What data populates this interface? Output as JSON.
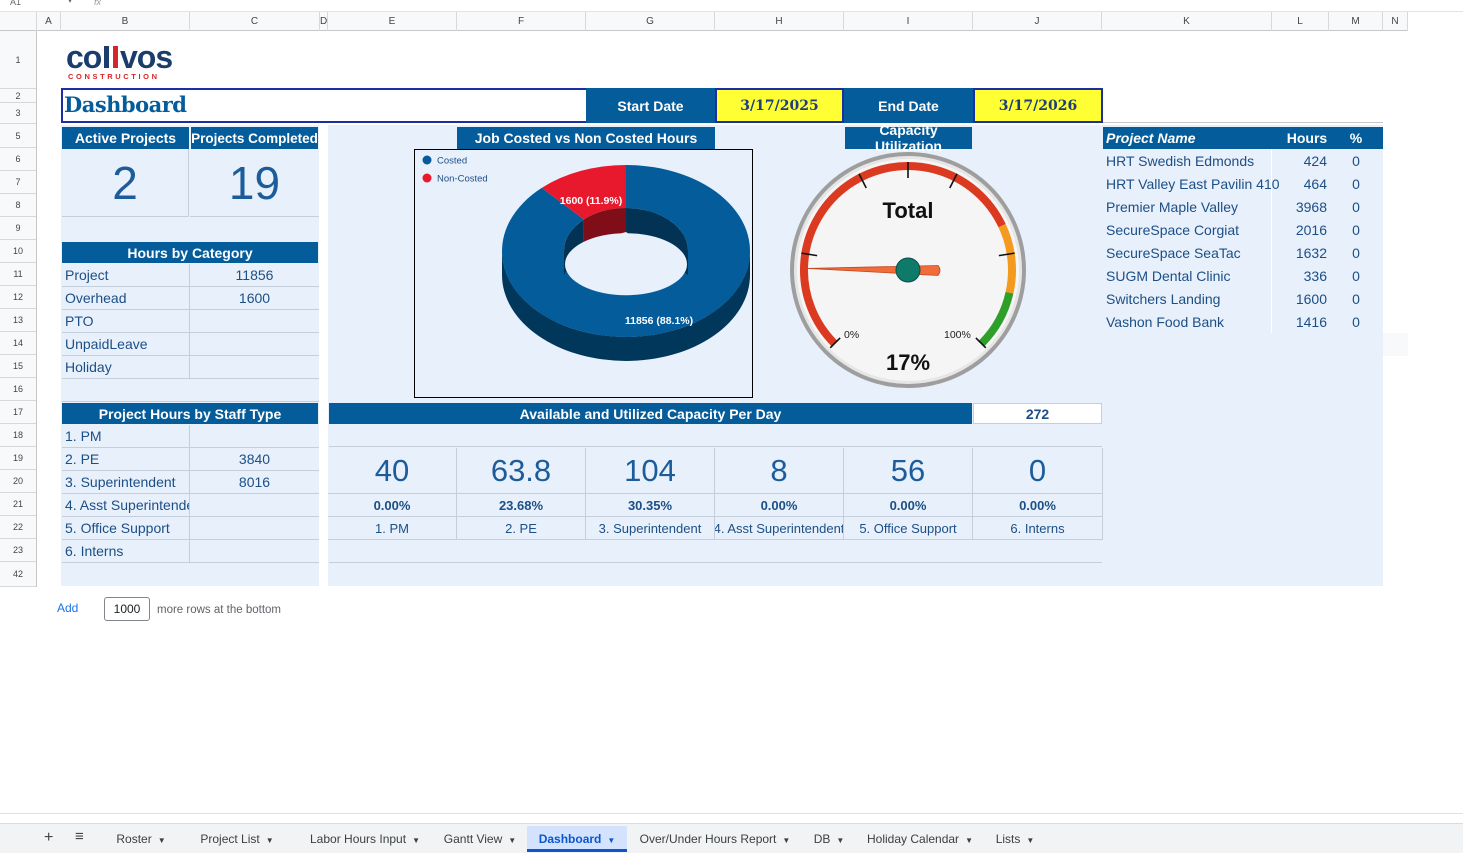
{
  "namebox": "A1",
  "fx": "fx",
  "columns": [
    "A",
    "B",
    "C",
    "D",
    "E",
    "F",
    "G",
    "H",
    "I",
    "J",
    "K",
    "L",
    "M",
    "N"
  ],
  "rows": [
    "1",
    "2",
    "3",
    "5",
    "6",
    "7",
    "8",
    "9",
    "10",
    "11",
    "12",
    "13",
    "14",
    "15",
    "16",
    "17",
    "18",
    "19",
    "20",
    "21",
    "22",
    "23",
    "42"
  ],
  "logo": {
    "main": "collvos",
    "sub": "CONSTRUCTION"
  },
  "title": "Dashboard",
  "dates": {
    "start_label": "Start Date",
    "start_value": "3/17/2025",
    "end_label": "End Date",
    "end_value": "3/17/2026"
  },
  "kpis": {
    "active_label": "Active Projects",
    "active_value": "2",
    "completed_label": "Projects Completed",
    "completed_value": "19"
  },
  "hours_by_category": {
    "title": "Hours by Category",
    "rows": [
      {
        "label": "Project",
        "value": "11856"
      },
      {
        "label": "Overhead",
        "value": "1600"
      },
      {
        "label": "PTO",
        "value": ""
      },
      {
        "label": "UnpaidLeave",
        "value": ""
      },
      {
        "label": "Holiday",
        "value": ""
      }
    ]
  },
  "staff_hours": {
    "title": "Project Hours by Staff Type",
    "rows": [
      {
        "label": "1. PM",
        "value": ""
      },
      {
        "label": "2. PE",
        "value": "3840"
      },
      {
        "label": "3. Superintendent",
        "value": "8016"
      },
      {
        "label": "4. Asst Superintenden",
        "value": ""
      },
      {
        "label": "5. Office Support",
        "value": ""
      },
      {
        "label": "6. Interns",
        "value": ""
      }
    ]
  },
  "chart_data": [
    {
      "type": "pie",
      "title": "Job Costed vs Non Costed Hours",
      "categories": [
        "Costed",
        "Non-Costed"
      ],
      "values": [
        11856,
        1600
      ],
      "data_labels": [
        "11856 (88.1%)",
        "1600 (11.9%)"
      ],
      "colors": [
        "#045c9a",
        "#e8192c"
      ],
      "legend": "top-left"
    }
  ],
  "gauge": {
    "title": "Capacity Utilization",
    "label": "Total",
    "value": 0.17,
    "value_text": "17%",
    "min_label": "0%",
    "max_label": "100%"
  },
  "capacity": {
    "title": "Available and Utilized Capacity Per Day",
    "total": "272",
    "items": [
      {
        "value": "40",
        "pct": "0.00%",
        "label": "1. PM"
      },
      {
        "value": "63.8",
        "pct": "23.68%",
        "label": "2. PE"
      },
      {
        "value": "104",
        "pct": "30.35%",
        "label": "3. Superintendent"
      },
      {
        "value": "8",
        "pct": "0.00%",
        "label": "4. Asst Superintendent"
      },
      {
        "value": "56",
        "pct": "0.00%",
        "label": "5. Office Support"
      },
      {
        "value": "0",
        "pct": "0.00%",
        "label": "6. Interns"
      }
    ]
  },
  "projects": {
    "headers": [
      "Project Name",
      "Hours",
      "%"
    ],
    "rows": [
      {
        "name": "HRT Swedish Edmonds",
        "hours": "424",
        "pct": "0"
      },
      {
        "name": "HRT Valley East Pavilin 410",
        "hours": "464",
        "pct": "0"
      },
      {
        "name": "Premier Maple Valley",
        "hours": "3968",
        "pct": "0"
      },
      {
        "name": "SecureSpace Corgiat",
        "hours": "2016",
        "pct": "0"
      },
      {
        "name": "SecureSpace SeaTac",
        "hours": "1632",
        "pct": "0"
      },
      {
        "name": "SUGM Dental Clinic",
        "hours": "336",
        "pct": "0"
      },
      {
        "name": "Switchers Landing",
        "hours": "1600",
        "pct": "0"
      },
      {
        "name": "Vashon Food Bank",
        "hours": "1416",
        "pct": "0"
      }
    ]
  },
  "add_rows": {
    "button": "Add",
    "count": "1000",
    "suffix": "more rows at the bottom"
  },
  "tabs": [
    {
      "label": "Roster",
      "active": false
    },
    {
      "label": "Project List",
      "active": false
    },
    {
      "label": "Labor Hours Input",
      "active": false
    },
    {
      "label": "Gantt View",
      "active": false
    },
    {
      "label": "Dashboard",
      "active": true
    },
    {
      "label": "Over/Under Hours Report",
      "active": false
    },
    {
      "label": "DB",
      "active": false
    },
    {
      "label": "Holiday Calendar",
      "active": false
    },
    {
      "label": "Lists",
      "active": false
    }
  ],
  "colors": {
    "brand": "#045c9a",
    "highlight": "#ffff33",
    "panel": "#e8f0fb",
    "non_costed": "#e8192c"
  }
}
